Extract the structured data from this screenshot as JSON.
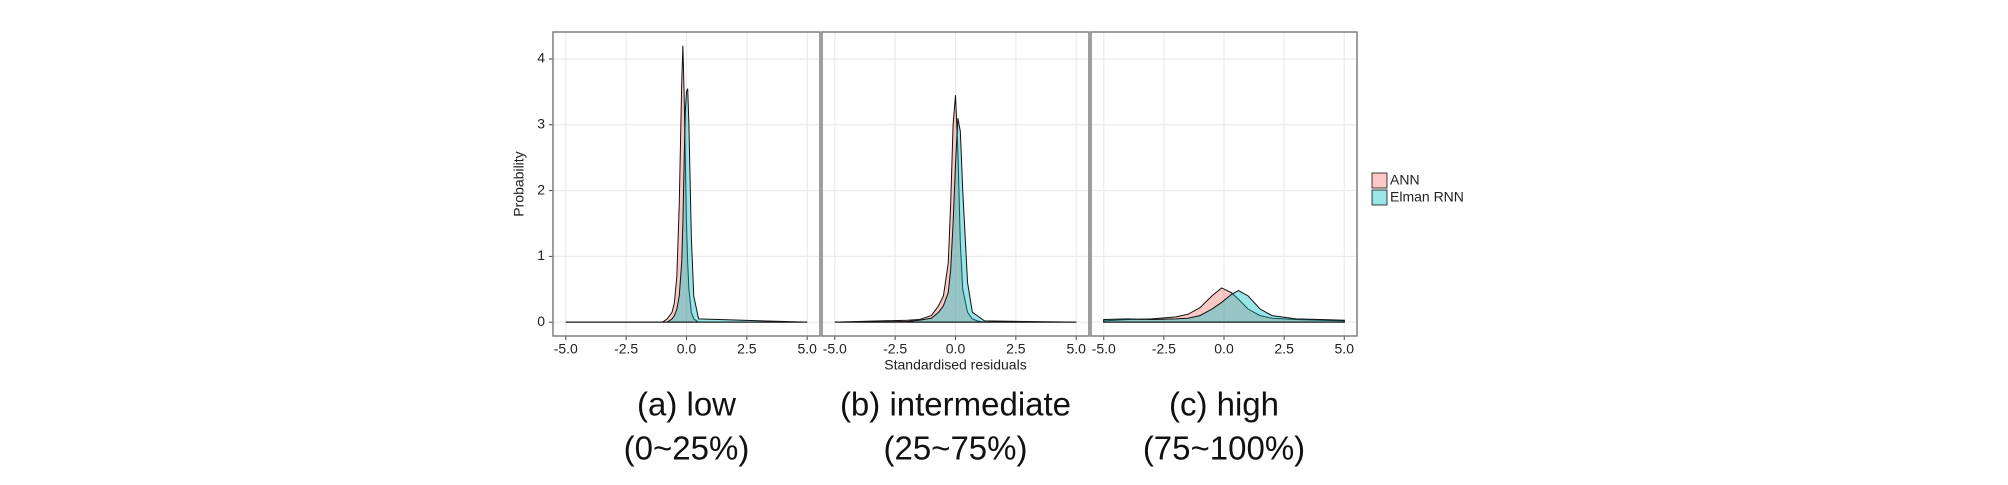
{
  "chart_data": [
    {
      "type": "area",
      "caption": [
        "(a) low",
        "(0~25%)"
      ],
      "ylabel": "Probability",
      "x": [
        -5,
        -1,
        -0.8,
        -0.6,
        -0.5,
        -0.4,
        -0.3,
        -0.2,
        -0.15,
        -0.1,
        -0.05,
        0,
        0.05,
        0.1,
        0.2,
        0.3,
        0.5,
        5
      ],
      "series": [
        {
          "name": "ANN",
          "color": "#F8766D",
          "values": [
            0,
            0,
            0.05,
            0.15,
            0.3,
            0.7,
            1.8,
            3.6,
            4.2,
            3.5,
            2.5,
            1.5,
            0.9,
            0.5,
            0.15,
            0.05,
            0,
            0
          ]
        },
        {
          "name": "Elman RNN",
          "color": "#00BFC4",
          "values": [
            0,
            0,
            0,
            0.05,
            0.1,
            0.2,
            0.4,
            0.9,
            1.5,
            2.4,
            3.2,
            3.5,
            3.55,
            3.0,
            1.3,
            0.4,
            0.05,
            0
          ]
        }
      ],
      "xlim": [
        -5.53,
        5.53
      ],
      "ylim": [
        -0.21,
        4.41
      ],
      "xticks": [
        {
          "value": -5,
          "label": "-5.0"
        },
        -2.5,
        {
          "value": 0,
          "label": "0.0"
        },
        2.5,
        {
          "value": 5,
          "label": "5.0"
        }
      ],
      "yticks": [
        0,
        1,
        2,
        3,
        4
      ],
      "grid": true
    },
    {
      "type": "area",
      "caption": [
        "(b) intermediate",
        "(25~75%)"
      ],
      "xlabel": "Standardised residuals",
      "x": [
        -5,
        -2,
        -1.5,
        -1,
        -0.7,
        -0.5,
        -0.3,
        -0.2,
        -0.1,
        0,
        0.1,
        0.2,
        0.3,
        0.5,
        0.7,
        0.9,
        1.2,
        5
      ],
      "series": [
        {
          "color": "#F8766D",
          "values": [
            0,
            0.03,
            0.04,
            0.1,
            0.25,
            0.4,
            0.9,
            1.8,
            3.0,
            3.45,
            2.6,
            1.2,
            0.5,
            0.15,
            0.05,
            0.02,
            0,
            0
          ]
        },
        {
          "color": "#00BFC4",
          "values": [
            0,
            0.01,
            0.03,
            0.06,
            0.15,
            0.25,
            0.45,
            0.8,
            1.5,
            2.4,
            3.1,
            2.9,
            2.0,
            0.6,
            0.15,
            0.1,
            0.02,
            0
          ]
        }
      ],
      "xlim": [
        -5.53,
        5.53
      ],
      "ylim": [
        -0.21,
        4.41
      ],
      "xticks": [
        {
          "value": -5,
          "label": "-5.0"
        },
        -2.5,
        {
          "value": 0,
          "label": "0.0"
        },
        2.5,
        {
          "value": 5,
          "label": "5.0"
        }
      ],
      "yticks": [
        0,
        1,
        2,
        3,
        4
      ],
      "grid": true
    },
    {
      "type": "area",
      "caption": [
        "(c) high",
        "(75~100%)"
      ],
      "x": [
        -5,
        -4,
        -3,
        -2,
        -1.5,
        -1,
        -0.5,
        -0.1,
        0.3,
        0.6,
        1,
        1.5,
        2,
        3,
        4,
        5
      ],
      "series": [
        {
          "color": "#F8766D",
          "values": [
            0.02,
            0.04,
            0.05,
            0.08,
            0.12,
            0.22,
            0.4,
            0.52,
            0.45,
            0.35,
            0.2,
            0.1,
            0.06,
            0.04,
            0.03,
            0.02
          ]
        },
        {
          "color": "#00BFC4",
          "values": [
            0.04,
            0.05,
            0.04,
            0.05,
            0.06,
            0.1,
            0.2,
            0.3,
            0.42,
            0.48,
            0.4,
            0.2,
            0.1,
            0.05,
            0.04,
            0.03
          ]
        }
      ],
      "xlim": [
        -5.53,
        5.53
      ],
      "ylim": [
        -0.21,
        4.41
      ],
      "xticks": [
        {
          "value": -5,
          "label": "-5.0"
        },
        -2.5,
        {
          "value": 0,
          "label": "0.0"
        },
        2.5,
        {
          "value": 5,
          "label": "5.0"
        }
      ],
      "yticks": [
        0,
        1,
        2,
        3,
        4
      ],
      "grid": true
    }
  ]
}
